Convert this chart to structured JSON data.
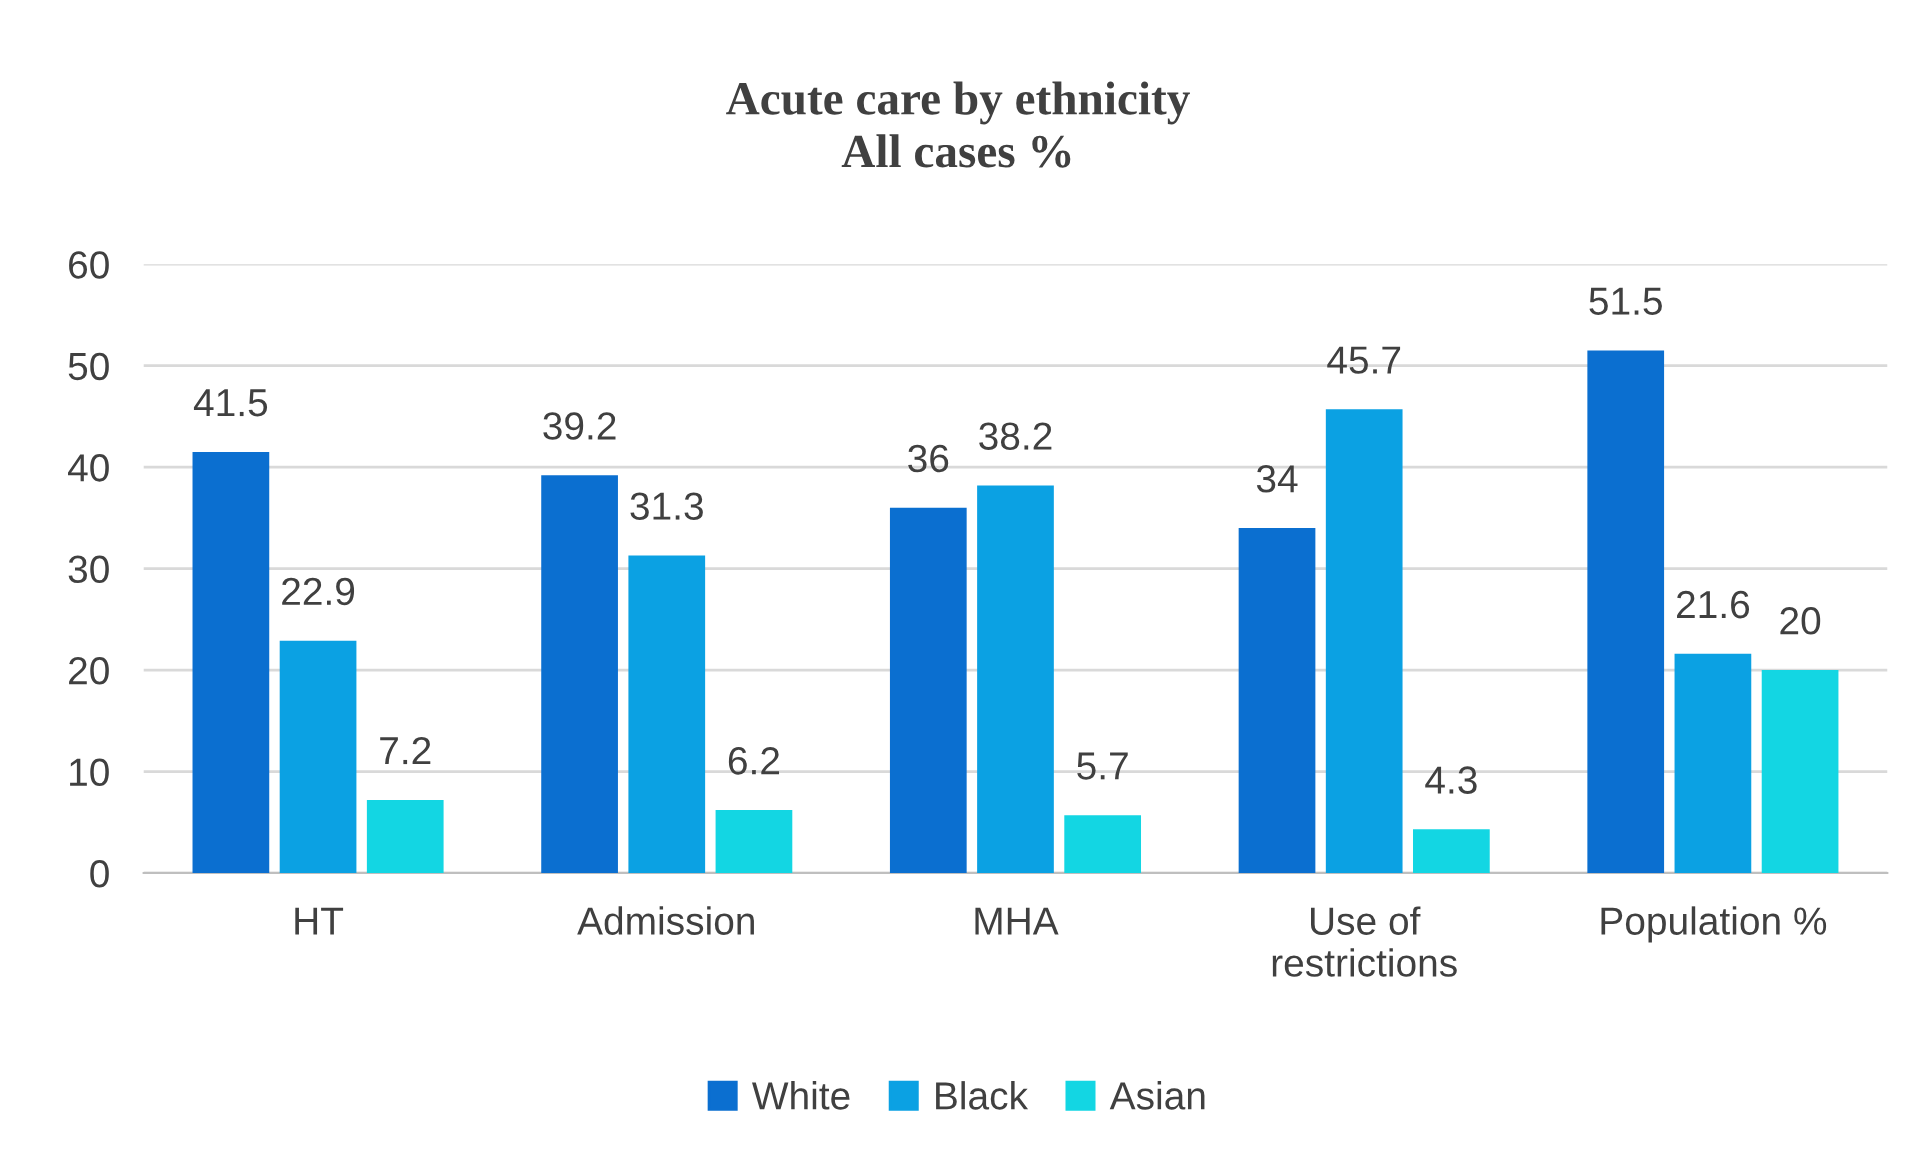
{
  "chart_data": {
    "type": "bar",
    "title": "Acute care by ethnicity\nAll cases %",
    "categories": [
      "HT",
      "Admission",
      "MHA",
      "Use of\nrestrictions",
      "Population %"
    ],
    "series": [
      {
        "name": "White",
        "color": "#0b6fd0",
        "values": [
          41.5,
          39.2,
          36,
          34,
          51.5
        ]
      },
      {
        "name": "Black",
        "color": "#0ba1e3",
        "values": [
          22.9,
          31.3,
          38.2,
          45.7,
          21.6
        ]
      },
      {
        "name": "Asian",
        "color": "#13d6e3",
        "values": [
          7.2,
          6.2,
          5.7,
          4.3,
          20
        ]
      }
    ],
    "ylim": [
      0,
      60
    ],
    "yticks": [
      0,
      10,
      20,
      30,
      40,
      50,
      60
    ],
    "grid": "y",
    "legend": "bottom",
    "data_labels": true
  }
}
